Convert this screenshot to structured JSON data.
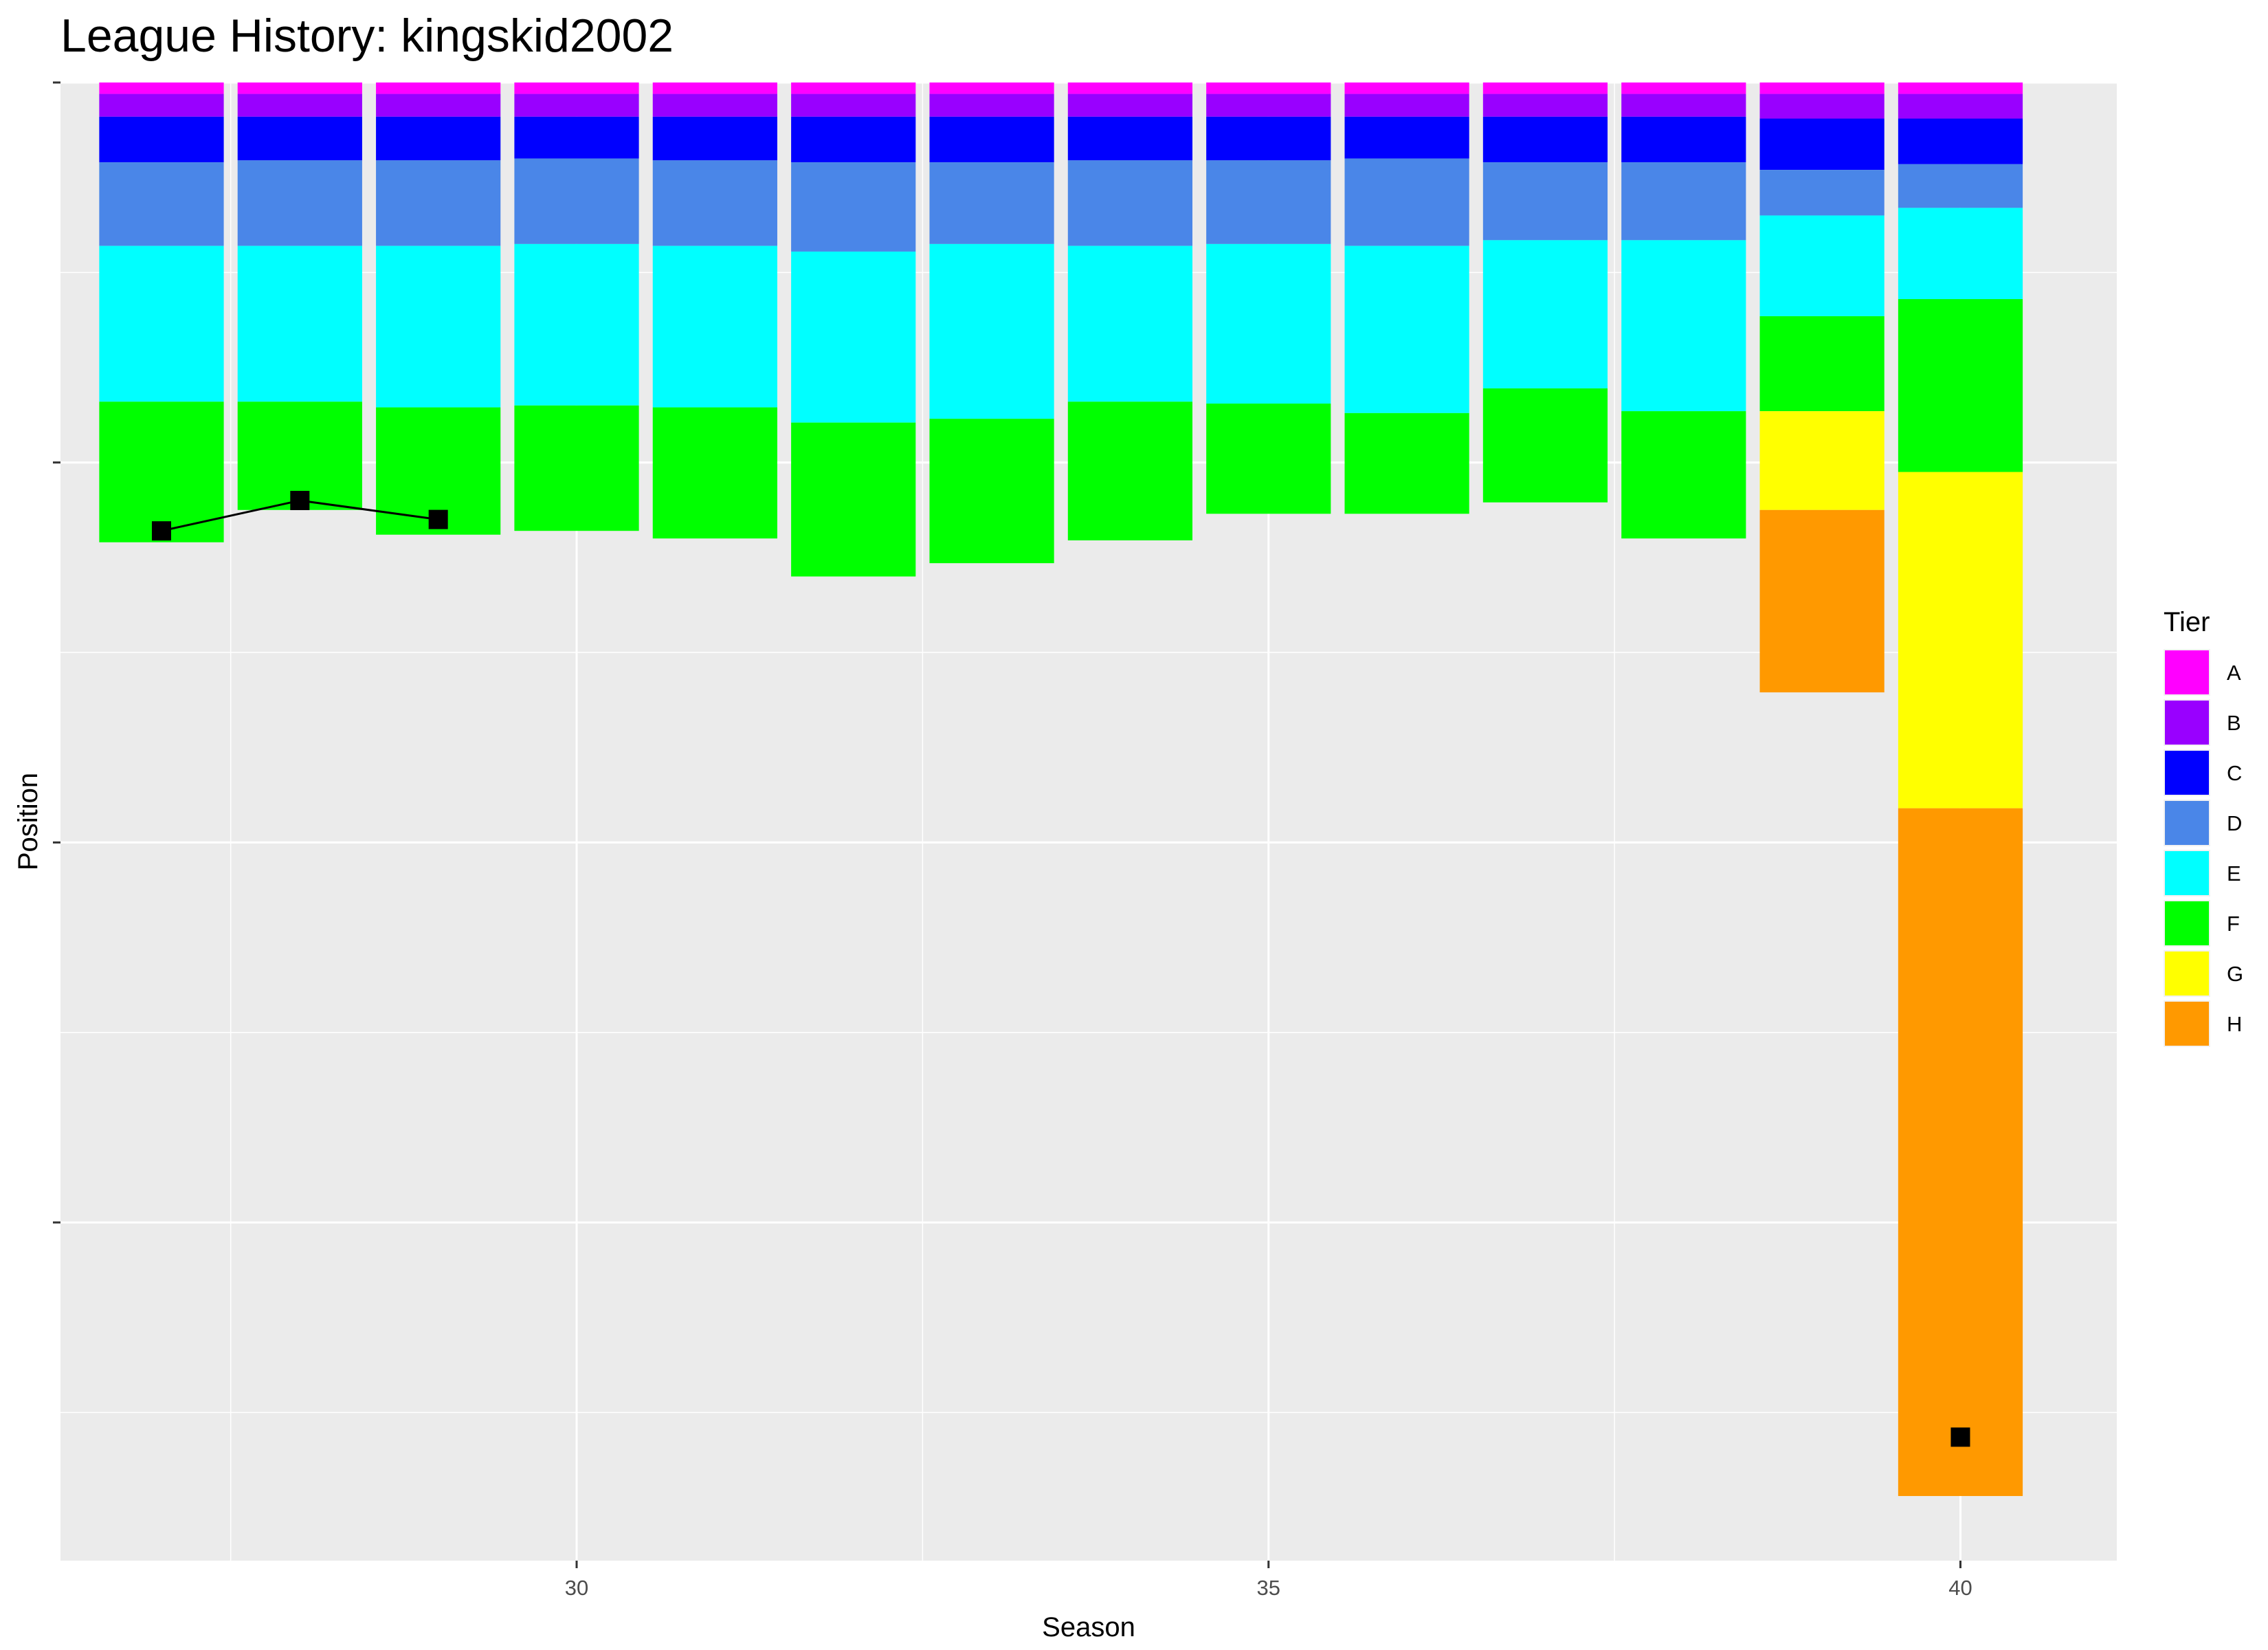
{
  "chart_data": {
    "type": "bar",
    "stacked": true,
    "title": "League History: kingskid2002",
    "xlabel": "Season",
    "ylabel": "Position",
    "x_ticks": [
      30,
      35,
      40
    ],
    "xlim": [
      26.27,
      41.13
    ],
    "ylim": [
      0,
      -3890
    ],
    "y_ticks_labeled": false,
    "grid": true,
    "legend": {
      "title": "Tier",
      "placement": "right"
    },
    "tier_colors": {
      "A": "#ff00ff",
      "B": "#9900ff",
      "C": "#0000ff",
      "D": "#4a86e8",
      "E": "#00ffff",
      "F": "#00ff00",
      "G": "#ffff00",
      "H": "#ff9900"
    },
    "seasons": [
      {
        "season": 27,
        "tiers": [
          [
            "A",
            30
          ],
          [
            "B",
            60
          ],
          [
            "C",
            120
          ],
          [
            "D",
            220
          ],
          [
            "E",
            410
          ],
          [
            "F",
            370
          ]
        ]
      },
      {
        "season": 28,
        "tiers": [
          [
            "A",
            30
          ],
          [
            "B",
            60
          ],
          [
            "C",
            115
          ],
          [
            "D",
            225
          ],
          [
            "E",
            410
          ],
          [
            "F",
            285
          ]
        ]
      },
      {
        "season": 29,
        "tiers": [
          [
            "A",
            30
          ],
          [
            "B",
            60
          ],
          [
            "C",
            115
          ],
          [
            "D",
            225
          ],
          [
            "E",
            425
          ],
          [
            "F",
            335
          ]
        ]
      },
      {
        "season": 30,
        "tiers": [
          [
            "A",
            30
          ],
          [
            "B",
            60
          ],
          [
            "C",
            110
          ],
          [
            "D",
            225
          ],
          [
            "E",
            425
          ],
          [
            "F",
            330
          ]
        ]
      },
      {
        "season": 31,
        "tiers": [
          [
            "A",
            30
          ],
          [
            "B",
            60
          ],
          [
            "C",
            115
          ],
          [
            "D",
            225
          ],
          [
            "E",
            425
          ],
          [
            "F",
            345
          ]
        ]
      },
      {
        "season": 32,
        "tiers": [
          [
            "A",
            30
          ],
          [
            "B",
            60
          ],
          [
            "C",
            120
          ],
          [
            "D",
            235
          ],
          [
            "E",
            450
          ],
          [
            "F",
            405
          ]
        ]
      },
      {
        "season": 33,
        "tiers": [
          [
            "A",
            30
          ],
          [
            "B",
            60
          ],
          [
            "C",
            120
          ],
          [
            "D",
            215
          ],
          [
            "E",
            460
          ],
          [
            "F",
            380
          ]
        ]
      },
      {
        "season": 34,
        "tiers": [
          [
            "A",
            30
          ],
          [
            "B",
            60
          ],
          [
            "C",
            115
          ],
          [
            "D",
            225
          ],
          [
            "E",
            410
          ],
          [
            "F",
            365
          ]
        ]
      },
      {
        "season": 35,
        "tiers": [
          [
            "A",
            30
          ],
          [
            "B",
            60
          ],
          [
            "C",
            115
          ],
          [
            "D",
            220
          ],
          [
            "E",
            420
          ],
          [
            "F",
            290
          ]
        ]
      },
      {
        "season": 36,
        "tiers": [
          [
            "A",
            30
          ],
          [
            "B",
            60
          ],
          [
            "C",
            110
          ],
          [
            "D",
            230
          ],
          [
            "E",
            440
          ],
          [
            "F",
            265
          ]
        ]
      },
      {
        "season": 37,
        "tiers": [
          [
            "A",
            30
          ],
          [
            "B",
            60
          ],
          [
            "C",
            120
          ],
          [
            "D",
            205
          ],
          [
            "E",
            390
          ],
          [
            "F",
            300
          ]
        ]
      },
      {
        "season": 38,
        "tiers": [
          [
            "A",
            30
          ],
          [
            "B",
            60
          ],
          [
            "C",
            120
          ],
          [
            "D",
            205
          ],
          [
            "E",
            450
          ],
          [
            "F",
            335
          ]
        ]
      },
      {
        "season": 39,
        "tiers": [
          [
            "A",
            30
          ],
          [
            "B",
            65
          ],
          [
            "C",
            135
          ],
          [
            "D",
            120
          ],
          [
            "E",
            265
          ],
          [
            "F",
            250
          ],
          [
            "G",
            260
          ],
          [
            "H",
            480
          ]
        ]
      },
      {
        "season": 40,
        "tiers": [
          [
            "A",
            30
          ],
          [
            "B",
            65
          ],
          [
            "C",
            120
          ],
          [
            "D",
            115
          ],
          [
            "E",
            240
          ],
          [
            "F",
            455
          ],
          [
            "G",
            885
          ],
          [
            "H",
            1810
          ]
        ]
      }
    ],
    "player_position": {
      "series": [
        {
          "x": [
            27,
            28,
            29
          ],
          "y": [
            -1180,
            -1100,
            -1150
          ]
        }
      ],
      "points": [
        {
          "x": 40,
          "y": -3565
        }
      ]
    }
  }
}
